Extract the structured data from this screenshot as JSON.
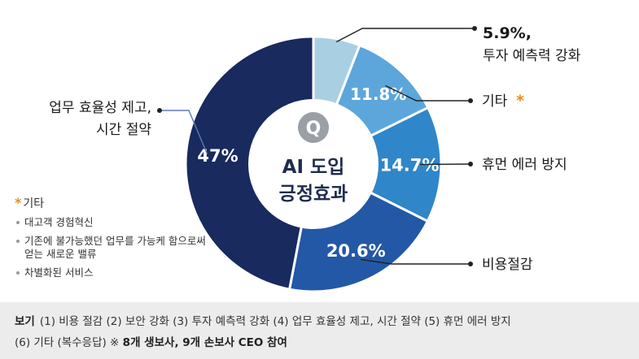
{
  "chart_data": {
    "type": "pie",
    "center_title": [
      "AI 도입",
      "긍정효과"
    ],
    "center_icon": "Q",
    "slices": [
      {
        "key": "risk",
        "value": 5.9,
        "label": "5.9%",
        "name": "투자 예측력 강화",
        "callout": [
          "5.9%,",
          "투자 예측력 강화"
        ],
        "color": "#a9cfe3"
      },
      {
        "key": "other",
        "value": 11.8,
        "label": "11.8%",
        "name": "기타",
        "callout": [
          "기타"
        ],
        "color": "#5ca6dc",
        "starred": true
      },
      {
        "key": "error",
        "value": 14.7,
        "label": "14.7%",
        "name": "휴먼 에러 방지",
        "callout": [
          "휴먼 에러 방지"
        ],
        "color": "#2f86c9"
      },
      {
        "key": "cost",
        "value": 20.6,
        "label": "20.6%",
        "name": "비용절감",
        "callout": [
          "비용절감"
        ],
        "color": "#2358a6"
      },
      {
        "key": "work",
        "value": 47,
        "label": "47%",
        "name": "업무 효율성 제고, 시간 절약",
        "callout": [
          "업무 효율성 제고,",
          "시간 절약"
        ],
        "color": "#182a5e"
      }
    ]
  },
  "note": {
    "title": "기타",
    "items": [
      "대고객 경험혁신",
      "기존에 불가능했던 업무를 가능케 함으로써 얻는 새로운 밸류",
      "차별화된 서비스"
    ]
  },
  "footer": {
    "lead": "보기",
    "line1": "(1) 비용 절감  (2) 보안 강화  (3) 투자 예측력 강화  (4) 업무 효율성 제고, 시간 절약  (5) 휴먼 에러 방지",
    "line2_plain": "(6) 기타 (복수응답) ※",
    "line2_bold": "8개 생보사, 9개 손보사 CEO 참여"
  }
}
